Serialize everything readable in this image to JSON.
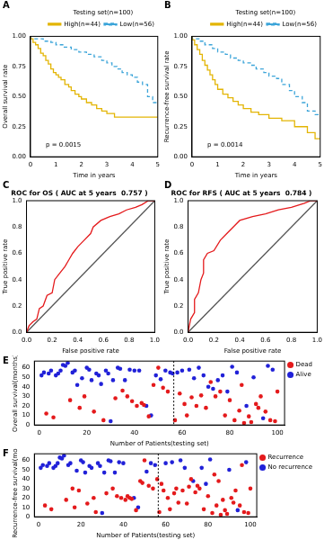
{
  "chart_data": [
    {
      "panel": "A",
      "type": "step",
      "legend": "topright",
      "legend_title": "Testing set(n=100)",
      "x_label": "Time in years",
      "y_label": "Overall survival rate",
      "annotation": "p = 0.0015",
      "xlim": [
        0,
        5
      ],
      "xticks": [
        0,
        1,
        2,
        3,
        4,
        5
      ],
      "ylim": [
        0,
        1
      ],
      "yticks": [
        {
          "value": 0,
          "label": "0.00"
        },
        0.25,
        {
          "value": 0.5,
          "label": "0.50"
        },
        0.75,
        {
          "value": 1,
          "label": "1.00"
        }
      ],
      "grid": false,
      "series": [
        {
          "name": "High(n=44)",
          "color": "#E3B505",
          "line_style": "solid",
          "x": [
            0,
            0.1,
            0.2,
            0.3,
            0.4,
            0.5,
            0.6,
            0.7,
            0.8,
            0.9,
            1.0,
            1.1,
            1.2,
            1.35,
            1.5,
            1.6,
            1.75,
            1.9,
            2.0,
            2.2,
            2.4,
            2.6,
            2.8,
            3.0,
            3.3,
            3.6,
            5.0
          ],
          "values": [
            1.0,
            0.98,
            0.95,
            0.93,
            0.9,
            0.86,
            0.84,
            0.8,
            0.77,
            0.73,
            0.7,
            0.68,
            0.66,
            0.64,
            0.6,
            0.58,
            0.55,
            0.52,
            0.5,
            0.48,
            0.45,
            0.43,
            0.4,
            0.38,
            0.36,
            0.33,
            0.33
          ]
        },
        {
          "name": "Low(n=56)",
          "color": "#3DA5D9",
          "line_style": "dashed",
          "x": [
            0,
            0.5,
            0.8,
            1.0,
            1.3,
            1.6,
            1.9,
            2.2,
            2.5,
            2.8,
            3.0,
            3.2,
            3.4,
            3.6,
            3.8,
            4.0,
            4.2,
            4.4,
            4.6,
            4.8,
            5.0
          ],
          "values": [
            1.0,
            0.98,
            0.96,
            0.95,
            0.93,
            0.91,
            0.89,
            0.87,
            0.85,
            0.83,
            0.8,
            0.78,
            0.75,
            0.73,
            0.7,
            0.68,
            0.66,
            0.62,
            0.6,
            0.5,
            0.45
          ]
        }
      ]
    },
    {
      "panel": "B",
      "type": "step",
      "legend": "topright",
      "legend_title": "Testing set(n=100)",
      "x_label": "Time in years",
      "y_label": "Recurrence-free survival rate",
      "annotation": "p = 0.0014",
      "xlim": [
        0,
        5
      ],
      "xticks": [
        0,
        1,
        2,
        3,
        4,
        5
      ],
      "ylim": [
        0,
        1
      ],
      "yticks": [
        {
          "value": 0,
          "label": "0.00"
        },
        0.25,
        {
          "value": 0.5,
          "label": "0.50"
        },
        0.75,
        {
          "value": 1,
          "label": "1.00"
        }
      ],
      "grid": false,
      "series": [
        {
          "name": "High(n=44)",
          "color": "#E3B505",
          "line_style": "solid",
          "x": [
            0,
            0.1,
            0.2,
            0.3,
            0.4,
            0.5,
            0.6,
            0.7,
            0.8,
            0.9,
            1.0,
            1.2,
            1.4,
            1.6,
            1.8,
            2.0,
            2.3,
            2.6,
            3.0,
            3.5,
            4.0,
            4.5,
            4.8,
            5.0
          ],
          "values": [
            1.0,
            0.97,
            0.93,
            0.89,
            0.85,
            0.8,
            0.76,
            0.72,
            0.68,
            0.64,
            0.6,
            0.56,
            0.52,
            0.49,
            0.46,
            0.43,
            0.4,
            0.37,
            0.35,
            0.32,
            0.3,
            0.25,
            0.2,
            0.15
          ]
        },
        {
          "name": "Low(n=56)",
          "color": "#3DA5D9",
          "line_style": "dashed",
          "x": [
            0,
            0.3,
            0.5,
            0.8,
            1.0,
            1.3,
            1.5,
            1.8,
            2.0,
            2.3,
            2.5,
            2.8,
            3.0,
            3.3,
            3.5,
            3.8,
            4.0,
            4.3,
            4.5,
            4.8,
            5.0
          ],
          "values": [
            1.0,
            0.98,
            0.96,
            0.93,
            0.9,
            0.87,
            0.85,
            0.82,
            0.8,
            0.78,
            0.76,
            0.73,
            0.7,
            0.67,
            0.65,
            0.6,
            0.55,
            0.5,
            0.45,
            0.38,
            0.35
          ]
        }
      ]
    },
    {
      "panel": "C",
      "type": "line",
      "title": "ROC for OS ( AUC at 5 years  0.757 )",
      "x_label": "False positive rate",
      "y_label": "True positive rate",
      "xlim": [
        0,
        1
      ],
      "xticks": [
        {
          "value": 0,
          "label": "0.0"
        },
        0.2,
        0.4,
        0.6,
        0.8,
        {
          "value": 1,
          "label": "1.0"
        }
      ],
      "ylim": [
        0,
        1
      ],
      "yticks": [
        {
          "value": 0,
          "label": "0.0"
        },
        0.2,
        0.4,
        0.6,
        0.8,
        {
          "value": 1,
          "label": "1.0"
        }
      ],
      "grid": false,
      "series": [
        {
          "color": "#E41A1C",
          "line_style": "solid",
          "x": [
            0,
            0.02,
            0.05,
            0.08,
            0.1,
            0.13,
            0.16,
            0.2,
            0.22,
            0.26,
            0.3,
            0.33,
            0.36,
            0.4,
            0.45,
            0.5,
            0.52,
            0.58,
            0.65,
            0.72,
            0.78,
            0.85,
            0.9,
            0.95,
            1
          ],
          "values": [
            0,
            0.05,
            0.08,
            0.1,
            0.18,
            0.2,
            0.28,
            0.3,
            0.4,
            0.45,
            0.5,
            0.55,
            0.6,
            0.65,
            0.7,
            0.75,
            0.8,
            0.85,
            0.88,
            0.9,
            0.93,
            0.95,
            0.97,
            1.0,
            1
          ]
        },
        {
          "color": "#555555",
          "line_style": "solid",
          "x": [
            0,
            1
          ],
          "values": [
            0,
            1
          ]
        }
      ]
    },
    {
      "panel": "D",
      "type": "line",
      "title": "ROC for RFS ( AUC at 5 years  0.784 )",
      "x_label": "False positive rate",
      "y_label": "True positive rate",
      "xlim": [
        0,
        1
      ],
      "xticks": [
        {
          "value": 0,
          "label": "0.0"
        },
        0.2,
        0.4,
        0.6,
        0.8,
        {
          "value": 1,
          "label": "1.0"
        }
      ],
      "ylim": [
        0,
        1
      ],
      "yticks": [
        {
          "value": 0,
          "label": "0.0"
        },
        0.2,
        0.4,
        0.6,
        0.8,
        {
          "value": 1,
          "label": "1.0"
        }
      ],
      "grid": false,
      "series": [
        {
          "color": "#E41A1C",
          "line_style": "solid",
          "x": [
            0,
            0.02,
            0.05,
            0.05,
            0.08,
            0.1,
            0.12,
            0.12,
            0.15,
            0.2,
            0.25,
            0.3,
            0.35,
            0.4,
            0.5,
            0.6,
            0.7,
            0.8,
            0.9,
            0.95,
            1
          ],
          "values": [
            0,
            0.1,
            0.15,
            0.25,
            0.3,
            0.4,
            0.45,
            0.55,
            0.6,
            0.62,
            0.7,
            0.75,
            0.8,
            0.85,
            0.88,
            0.9,
            0.93,
            0.95,
            0.98,
            1.0,
            1
          ]
        },
        {
          "color": "#555555",
          "line_style": "solid",
          "x": [
            0,
            1
          ],
          "values": [
            0,
            1
          ]
        }
      ]
    },
    {
      "panel": "E",
      "type": "scatter",
      "legend": "right",
      "x_label": "Number of Patients(testing set)",
      "y_label": "Overall survival(months)",
      "xlim": [
        -2,
        103
      ],
      "xticks": [
        0,
        20,
        40,
        60,
        80,
        100
      ],
      "ylim": [
        0,
        67
      ],
      "yticks": [
        0,
        10,
        20,
        30,
        40,
        50,
        60
      ],
      "grid": false,
      "cutoff_x": 56.5,
      "series": [
        {
          "name": "Dead",
          "color": "#E41A1C",
          "marker": "circle",
          "x": [
            3,
            6,
            13,
            17,
            19,
            23,
            27,
            32,
            35,
            37,
            39,
            41,
            43,
            44,
            46,
            48,
            50,
            52,
            54,
            57,
            59,
            61,
            62,
            64,
            66,
            68,
            70,
            72,
            74,
            76,
            78,
            80,
            82,
            84,
            85,
            86,
            88,
            89,
            91,
            92,
            93,
            95,
            97,
            99,
            100
          ],
          "values": [
            12,
            8,
            26,
            18,
            30,
            14,
            5,
            28,
            36,
            30,
            25,
            20,
            23,
            21,
            9,
            42,
            60,
            39,
            35,
            5,
            33,
            22,
            10,
            29,
            20,
            31,
            18,
            45,
            30,
            35,
            10,
            26,
            5,
            15,
            42,
            2,
            9,
            3,
            22,
            18,
            30,
            14,
            5,
            4,
            35
          ]
        },
        {
          "name": "Alive",
          "color": "#2121D8",
          "marker": "circle",
          "x": [
            1,
            2,
            4,
            5,
            7,
            8,
            9,
            10,
            11,
            12,
            14,
            15,
            16,
            18,
            20,
            21,
            22,
            24,
            25,
            26,
            28,
            29,
            30,
            31,
            33,
            34,
            36,
            38,
            40,
            42,
            45,
            47,
            49,
            51,
            53,
            55,
            56,
            58,
            60,
            63,
            65,
            67,
            69,
            71,
            73,
            75,
            77,
            79,
            81,
            83,
            87,
            90,
            94,
            96,
            98
          ],
          "values": [
            52,
            55,
            54,
            57,
            52,
            54,
            57,
            63,
            62,
            65,
            55,
            57,
            42,
            49,
            60,
            58,
            47,
            54,
            52,
            43,
            57,
            54,
            4,
            47,
            60,
            59,
            47,
            58,
            57,
            57,
            20,
            10,
            52,
            48,
            57,
            55,
            54,
            55,
            57,
            58,
            49,
            60,
            52,
            40,
            38,
            47,
            52,
            35,
            61,
            55,
            20,
            50,
            7,
            62,
            58
          ]
        }
      ]
    },
    {
      "panel": "F",
      "type": "scatter",
      "legend": "right",
      "x_label": "Number of Patients(testing set)",
      "y_label": "Recurrence-free survival(months)",
      "xlim": [
        -2,
        103
      ],
      "xticks": [
        0,
        20,
        40,
        60,
        80,
        100
      ],
      "ylim": [
        0,
        67
      ],
      "yticks": [
        0,
        10,
        20,
        30,
        40,
        50,
        60
      ],
      "grid": false,
      "cutoff_x": 56.5,
      "series": [
        {
          "name": "Recurrence",
          "color": "#E41A1C",
          "marker": "circle",
          "x": [
            3,
            6,
            13,
            16,
            17,
            19,
            23,
            26,
            27,
            32,
            35,
            37,
            39,
            41,
            42,
            43,
            44,
            46,
            48,
            49,
            50,
            52,
            54,
            56,
            57,
            58,
            59,
            61,
            62,
            64,
            65,
            66,
            68,
            70,
            71,
            72,
            74,
            75,
            76,
            78,
            80,
            82,
            83,
            84,
            85,
            86,
            87,
            88,
            89,
            91,
            92,
            93,
            95,
            96,
            97,
            99,
            100
          ],
          "values": [
            12,
            8,
            18,
            30,
            10,
            28,
            14,
            20,
            5,
            25,
            30,
            22,
            20,
            18,
            22,
            20,
            19,
            7,
            38,
            36,
            60,
            33,
            30,
            40,
            5,
            35,
            28,
            20,
            8,
            25,
            30,
            15,
            28,
            14,
            32,
            40,
            26,
            33,
            30,
            8,
            22,
            4,
            45,
            12,
            38,
            2,
            18,
            7,
            3,
            20,
            15,
            28,
            12,
            55,
            5,
            4,
            30
          ]
        },
        {
          "name": "No recurrence",
          "color": "#2121D8",
          "marker": "circle",
          "x": [
            1,
            2,
            4,
            5,
            7,
            8,
            9,
            10,
            11,
            12,
            14,
            15,
            18,
            20,
            21,
            22,
            24,
            25,
            28,
            29,
            30,
            31,
            33,
            34,
            36,
            38,
            40,
            45,
            47,
            51,
            53,
            55,
            60,
            63,
            67,
            69,
            73,
            77,
            79,
            81,
            90,
            94,
            98
          ],
          "values": [
            52,
            55,
            54,
            57,
            52,
            54,
            57,
            63,
            62,
            65,
            55,
            57,
            49,
            60,
            58,
            47,
            54,
            52,
            57,
            54,
            4,
            47,
            60,
            59,
            47,
            58,
            57,
            20,
            10,
            48,
            57,
            55,
            57,
            58,
            60,
            52,
            38,
            52,
            35,
            61,
            50,
            7,
            58
          ]
        }
      ]
    }
  ]
}
